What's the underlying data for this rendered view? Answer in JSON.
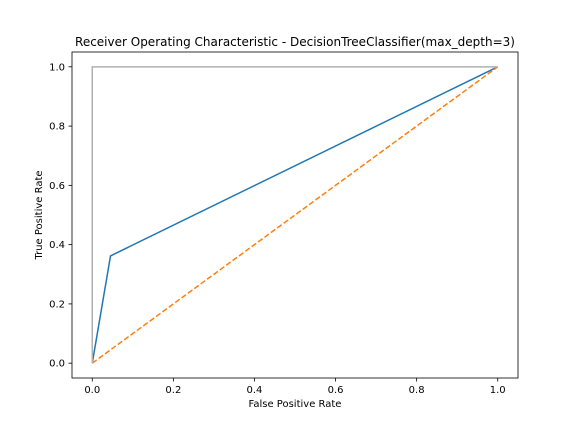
{
  "chart_data": {
    "type": "line",
    "title": "Receiver Operating Characteristic - DecisionTreeClassifier(max_depth=3)",
    "xlabel": "False Positive Rate",
    "ylabel": "True Positive Rate",
    "xlim": [
      -0.05,
      1.05
    ],
    "ylim": [
      -0.05,
      1.05
    ],
    "xticks": [
      "0.0",
      "0.2",
      "0.4",
      "0.6",
      "0.8",
      "1.0"
    ],
    "yticks": [
      "0.0",
      "0.2",
      "0.4",
      "0.6",
      "0.8",
      "1.0"
    ],
    "grid": false,
    "series": [
      {
        "style": "solid",
        "color": "#1f77b4",
        "x": [
          0.0,
          0.045,
          1.0
        ],
        "y": [
          0.0,
          0.362,
          1.0
        ]
      },
      {
        "style": "dashed",
        "color": "#ff7f0e",
        "x": [
          0.0,
          1.0
        ],
        "y": [
          0.0,
          1.0
        ]
      },
      {
        "style": "solid",
        "color": "#b0b0b0",
        "x": [
          0.0,
          0.0,
          1.0
        ],
        "y": [
          0.0,
          1.0,
          1.0
        ]
      }
    ]
  }
}
